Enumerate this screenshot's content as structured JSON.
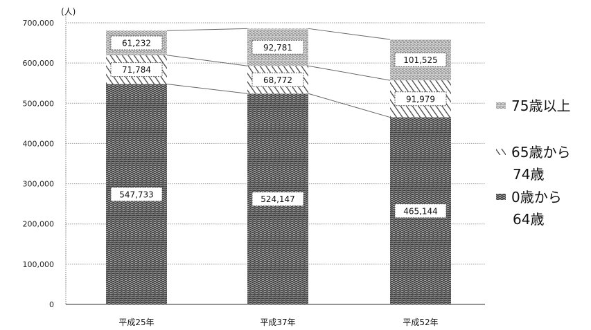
{
  "chart_data": {
    "type": "bar",
    "stacked": true,
    "unit_label": "(人)",
    "categories": [
      "平成25年",
      "平成37年",
      "平成52年"
    ],
    "y_ticks": [
      "0",
      "100,000",
      "200,000",
      "300,000",
      "400,000",
      "500,000",
      "600,000",
      "700,000"
    ],
    "ylim": [
      0,
      700000
    ],
    "grid": true,
    "legend_position": "right",
    "series": [
      {
        "name": "0歳から64歳",
        "legend_lines": [
          "0歳から",
          "64歳"
        ],
        "values": [
          547733,
          524147,
          465144
        ],
        "labels": [
          "547,733",
          "524,147",
          "465,144"
        ],
        "color": "#4a4a4a",
        "pattern": "dense-noise"
      },
      {
        "name": "65歳から74歳",
        "legend_lines": [
          "65歳から",
          "74歳"
        ],
        "values": [
          71784,
          68772,
          91979
        ],
        "labels": [
          "71,784",
          "68,772",
          "91,979"
        ],
        "color": "#5a5a5a",
        "pattern": "diagonal"
      },
      {
        "name": "75歳以上",
        "legend_lines": [
          "75歳以上"
        ],
        "values": [
          61232,
          92781,
          101525
        ],
        "labels": [
          "61,232",
          "92,781",
          "101,525"
        ],
        "color": "#9a9a9a",
        "pattern": "light-noise"
      }
    ]
  }
}
